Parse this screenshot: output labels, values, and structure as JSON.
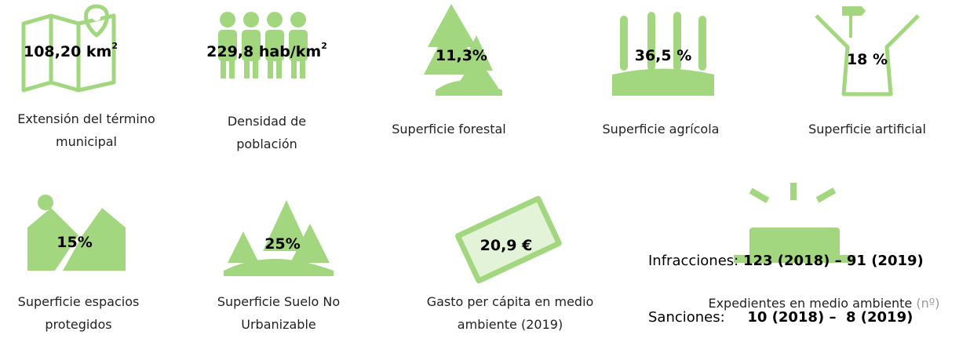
{
  "items": [
    {
      "value": "108,20 km",
      "sup": "2",
      "label": [
        "Extensión del término",
        "municipal"
      ]
    },
    {
      "value": "229,8 hab/km",
      "sup": "2",
      "label": [
        "Densidad de",
        "población"
      ]
    },
    {
      "value": "11,3%",
      "label": [
        "Superficie forestal"
      ]
    },
    {
      "value": "36,5 %",
      "label": [
        "Superficie agrícola"
      ]
    },
    {
      "value": "18 %",
      "label": [
        "Superficie artificial"
      ]
    },
    {
      "value": "15%",
      "label": [
        "Superficie espacios",
        "protegidos"
      ]
    },
    {
      "value": "25%",
      "label": [
        "Superficie Suelo No",
        "Urbanizable"
      ]
    },
    {
      "value": "20,9 €",
      "label": [
        "Gasto per cápita en medio",
        "ambiente (2019)"
      ]
    }
  ],
  "expedientes": {
    "rows": [
      [
        "Infracciones:",
        "123 (2018) – 91 (2019)"
      ],
      [
        "Sanciones:",
        "10 (2018) –  8 (2019)"
      ]
    ],
    "label": "Expedientes en medio ambiente",
    "unit": "(nº)"
  }
}
